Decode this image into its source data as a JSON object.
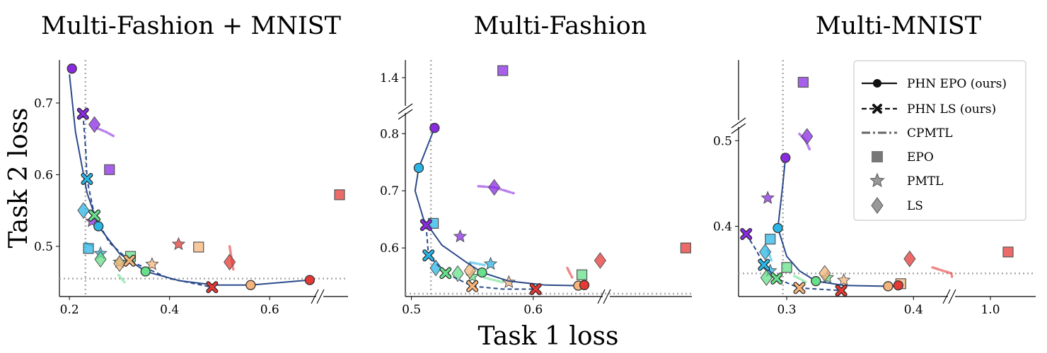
{
  "chart_data": {
    "type": "scatter",
    "xlabel": "Task 1 loss",
    "ylabel": "Task 2 loss",
    "legend": {
      "placement": "top-right (third panel)",
      "entries": [
        {
          "label": "PHN EPO (ours)",
          "marker": "circle",
          "line": "solid"
        },
        {
          "label": "PHN LS (ours)",
          "marker": "x",
          "line": "dashed"
        },
        {
          "label": "CPMTL",
          "marker": "none",
          "line": "dash-dot"
        },
        {
          "label": "EPO",
          "marker": "square"
        },
        {
          "label": "PMTL",
          "marker": "star"
        },
        {
          "label": "LS",
          "marker": "diamond"
        }
      ]
    },
    "ray_colors": [
      "#8a2be2",
      "#29b6e6",
      "#66e08a",
      "#f5b47a",
      "#e53935"
    ],
    "line_color": "#2b4a8a",
    "panels": [
      {
        "title": "Multi-Fashion + MNIST",
        "xticks": [
          "0.2",
          "0.4",
          "0.6"
        ],
        "yticks": [
          "0.5",
          "0.6",
          "0.7"
        ],
        "ideal": {
          "x": 0.232,
          "y": 0.455
        },
        "phn_epo": [
          [
            0.205,
            0.748
          ],
          [
            0.258,
            0.528
          ],
          [
            0.352,
            0.465
          ],
          [
            0.562,
            0.446
          ],
          [
            0.68,
            0.453
          ]
        ],
        "phn_epo_curve": [
          [
            0.2,
            0.74
          ],
          [
            0.212,
            0.66
          ],
          [
            0.235,
            0.575
          ],
          [
            0.258,
            0.528
          ],
          [
            0.3,
            0.49
          ],
          [
            0.352,
            0.465
          ],
          [
            0.42,
            0.452
          ],
          [
            0.49,
            0.446
          ],
          [
            0.562,
            0.446
          ],
          [
            0.68,
            0.453
          ]
        ],
        "phn_ls": [
          [
            0.227,
            0.685
          ],
          [
            0.235,
            0.594
          ],
          [
            0.25,
            0.543
          ],
          [
            0.32,
            0.48
          ],
          [
            0.485,
            0.443
          ]
        ],
        "phn_ls_curve": [
          [
            0.227,
            0.685
          ],
          [
            0.233,
            0.63
          ],
          [
            0.235,
            0.594
          ],
          [
            0.25,
            0.543
          ],
          [
            0.28,
            0.505
          ],
          [
            0.32,
            0.48
          ],
          [
            0.4,
            0.455
          ],
          [
            0.485,
            0.443
          ]
        ],
        "epo": [
          [
            0.28,
            0.607
          ],
          [
            0.238,
            0.497
          ],
          [
            0.322,
            0.486
          ],
          [
            0.458,
            0.499
          ],
          [
            0.735,
            0.572
          ]
        ],
        "pmtl": [
          [
            0.245,
            0.535
          ],
          [
            0.262,
            0.49
          ],
          [
            0.3,
            0.478
          ],
          [
            0.365,
            0.475
          ],
          [
            0.418,
            0.503
          ]
        ],
        "ls": [
          [
            0.25,
            0.67
          ],
          [
            0.228,
            0.55
          ],
          [
            0.262,
            0.482
          ],
          [
            0.3,
            0.476
          ],
          [
            0.52,
            0.478
          ]
        ],
        "cpmtl": [
          [
            [
              0.255,
              0.665
            ],
            [
              0.272,
              0.66
            ],
            [
              0.288,
              0.654
            ]
          ],
          [
            [
              0.232,
              0.505
            ],
            [
              0.248,
              0.5
            ]
          ],
          [
            [
              0.298,
              0.46
            ],
            [
              0.31,
              0.45
            ]
          ],
          [
            [
              0.52,
              0.5
            ],
            [
              0.528,
              0.465
            ]
          ]
        ]
      },
      {
        "title": "Multi-Fashion",
        "xticks": [
          "0.5",
          "0.6"
        ],
        "yticks": [
          "0.6",
          "0.7",
          "0.8",
          "1.4"
        ],
        "ideal": {
          "x": 0.516,
          "y": 0.52
        },
        "phn_epo": [
          [
            0.519,
            0.81
          ],
          [
            0.506,
            0.74
          ],
          [
            0.558,
            0.557
          ],
          [
            0.637,
            0.534
          ],
          [
            0.642,
            0.535
          ]
        ],
        "phn_epo_curve": [
          [
            0.519,
            0.81
          ],
          [
            0.506,
            0.74
          ],
          [
            0.503,
            0.7
          ],
          [
            0.51,
            0.65
          ],
          [
            0.525,
            0.605
          ],
          [
            0.545,
            0.575
          ],
          [
            0.558,
            0.557
          ],
          [
            0.58,
            0.542
          ],
          [
            0.61,
            0.535
          ],
          [
            0.637,
            0.534
          ],
          [
            0.642,
            0.535
          ]
        ],
        "phn_ls": [
          [
            0.512,
            0.64
          ],
          [
            0.514,
            0.587
          ],
          [
            0.528,
            0.556
          ],
          [
            0.55,
            0.533
          ],
          [
            0.602,
            0.528
          ]
        ],
        "phn_ls_curve": [
          [
            0.512,
            0.64
          ],
          [
            0.514,
            0.587
          ],
          [
            0.528,
            0.556
          ],
          [
            0.55,
            0.533
          ],
          [
            0.575,
            0.528
          ],
          [
            0.602,
            0.528
          ]
        ],
        "epo": [
          [
            0.575,
            1.44
          ],
          [
            0.518,
            0.643
          ],
          [
            0.64,
            0.553
          ],
          [
            0.79,
            0.6
          ]
        ],
        "pmtl": [
          [
            0.54,
            0.62
          ],
          [
            0.565,
            0.572
          ],
          [
            0.55,
            0.55
          ],
          [
            0.58,
            0.54
          ]
        ],
        "ls": [
          [
            0.568,
            0.706
          ],
          [
            0.52,
            0.565
          ],
          [
            0.538,
            0.555
          ],
          [
            0.548,
            0.56
          ],
          [
            0.655,
            0.578
          ]
        ],
        "cpmtl": [
          [
            [
              0.555,
              0.708
            ],
            [
              0.568,
              0.706
            ],
            [
              0.585,
              0.695
            ]
          ],
          [
            [
              0.548,
              0.575
            ],
            [
              0.56,
              0.57
            ]
          ],
          [
            [
              0.56,
              0.548
            ],
            [
              0.575,
              0.54
            ]
          ],
          [
            [
              0.628,
              0.565
            ],
            [
              0.632,
              0.548
            ]
          ]
        ]
      },
      {
        "title": "Multi-MNIST",
        "xticks": [
          "0.3",
          "0.4",
          "1.0"
        ],
        "yticks": [
          "0.4",
          "0.5"
        ],
        "ideal": {
          "x": 0.297,
          "y": 0.345
        },
        "phn_epo": [
          [
            0.299,
            0.48
          ],
          [
            0.293,
            0.398
          ],
          [
            0.323,
            0.336
          ],
          [
            0.38,
            0.33
          ],
          [
            0.388,
            0.331
          ]
        ],
        "phn_epo_curve": [
          [
            0.299,
            0.48
          ],
          [
            0.297,
            0.45
          ],
          [
            0.293,
            0.398
          ],
          [
            0.3,
            0.365
          ],
          [
            0.31,
            0.348
          ],
          [
            0.323,
            0.336
          ],
          [
            0.345,
            0.331
          ],
          [
            0.38,
            0.33
          ],
          [
            0.388,
            0.331
          ]
        ],
        "phn_ls": [
          [
            0.268,
            0.391
          ],
          [
            0.282,
            0.355
          ],
          [
            0.292,
            0.339
          ],
          [
            0.31,
            0.328
          ],
          [
            0.343,
            0.325
          ]
        ],
        "phn_ls_curve": [
          [
            0.268,
            0.391
          ],
          [
            0.276,
            0.372
          ],
          [
            0.282,
            0.355
          ],
          [
            0.292,
            0.339
          ],
          [
            0.31,
            0.328
          ],
          [
            0.343,
            0.325
          ]
        ],
        "epo": [
          [
            0.313,
            0.572
          ],
          [
            0.287,
            0.385
          ],
          [
            0.3,
            0.352
          ],
          [
            0.39,
            0.333
          ],
          [
            1.05,
            0.37
          ]
        ],
        "pmtl": [
          [
            0.285,
            0.433
          ],
          [
            0.287,
            0.348
          ],
          [
            0.332,
            0.34
          ],
          [
            0.345,
            0.337
          ]
        ],
        "ls": [
          [
            0.316,
            0.505
          ],
          [
            0.283,
            0.37
          ],
          [
            0.284,
            0.34
          ],
          [
            0.33,
            0.345
          ],
          [
            0.397,
            0.362
          ]
        ],
        "cpmtl": [
          [
            [
              0.31,
              0.508
            ],
            [
              0.315,
              0.5
            ],
            [
              0.318,
              0.49
            ]
          ],
          [
            [
              0.285,
              0.372
            ],
            [
              0.288,
              0.36
            ]
          ],
          [
            [
              0.306,
              0.342
            ],
            [
              0.315,
              0.335
            ]
          ],
          [
            [
              0.415,
              0.352
            ],
            [
              0.43,
              0.345
            ],
            [
              0.44,
              0.34
            ]
          ]
        ]
      }
    ]
  }
}
